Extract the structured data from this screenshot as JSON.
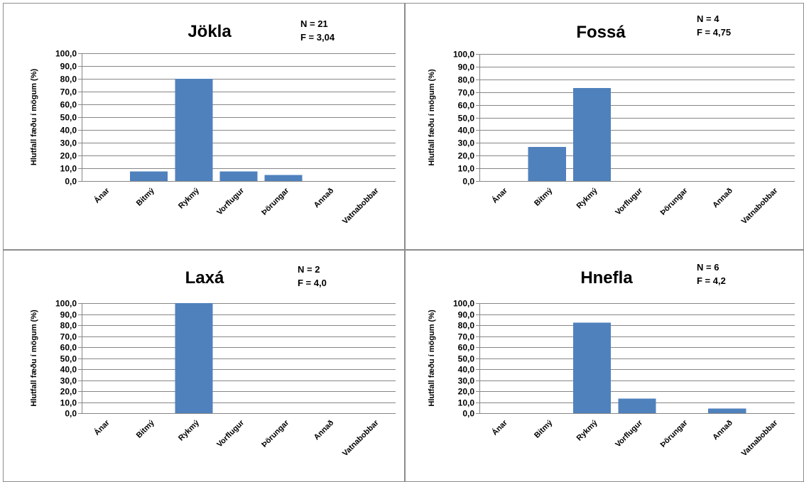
{
  "chart_data": [
    {
      "type": "bar",
      "title": "Jökla",
      "stats": [
        "N = 21",
        "F = 3,04"
      ],
      "ylabel": "Hlutfall fæðu í mögum (%)",
      "categories": [
        "Ánar",
        "Bitmý",
        "Rykmý",
        "Vorflugur",
        "Þörungar",
        "Annað",
        "Vatnabobbar"
      ],
      "values": [
        0,
        7.6,
        80.0,
        7.6,
        4.8,
        0,
        0
      ],
      "ylim": [
        0,
        100
      ],
      "yticks": [
        "0,0",
        "10,0",
        "20,0",
        "30,0",
        "40,0",
        "50,0",
        "60,0",
        "70,0",
        "80,0",
        "90,0",
        "100,0"
      ],
      "grid": true,
      "color": "#4f81bd"
    },
    {
      "type": "bar",
      "title": "Fossá",
      "stats": [
        "N = 4",
        "F = 4,75"
      ],
      "ylabel": "Hlutfall fæðu í mögum (%)",
      "categories": [
        "Ánar",
        "Bitmý",
        "Rykmý",
        "Vorflugur",
        "Þörungar",
        "Annað",
        "Vatnabobbar"
      ],
      "values": [
        0,
        26.7,
        73.3,
        0,
        0,
        0,
        0
      ],
      "ylim": [
        0,
        100
      ],
      "yticks": [
        "0,0",
        "10,0",
        "20,0",
        "30,0",
        "40,0",
        "50,0",
        "60,0",
        "70,0",
        "80,0",
        "90,0",
        "100,0"
      ],
      "grid": true,
      "color": "#4f81bd"
    },
    {
      "type": "bar",
      "title": "Laxá",
      "stats": [
        "N = 2",
        "F = 4,0"
      ],
      "ylabel": "Hlutfall fæðu í mögum (%)",
      "categories": [
        "Ánar",
        "Bitmý",
        "Rykmý",
        "Vorflugur",
        "Þörungar",
        "Annað",
        "Vatnabobbar"
      ],
      "values": [
        0,
        0,
        100.0,
        0,
        0,
        0,
        0
      ],
      "ylim": [
        0,
        100
      ],
      "yticks": [
        "0,0",
        "10,0",
        "20,0",
        "30,0",
        "40,0",
        "50,0",
        "60,0",
        "70,0",
        "80,0",
        "90,0",
        "100,0"
      ],
      "grid": true,
      "color": "#4f81bd"
    },
    {
      "type": "bar",
      "title": "Hnefla",
      "stats": [
        "N = 6",
        "F = 4,2"
      ],
      "ylabel": "Hlutfall fæðu í mögum (%)",
      "categories": [
        "Ánar",
        "Bitmý",
        "Rykmý",
        "Vorflugur",
        "Þörungar",
        "Annað",
        "Vatnabobbar"
      ],
      "values": [
        0,
        0,
        82.1,
        13.3,
        0,
        4.1,
        0
      ],
      "ylim": [
        0,
        100
      ],
      "yticks": [
        "0,0",
        "10,0",
        "20,0",
        "30,0",
        "40,0",
        "50,0",
        "60,0",
        "70,0",
        "80,0",
        "90,0",
        "100,0"
      ],
      "grid": true,
      "color": "#4f81bd"
    }
  ]
}
